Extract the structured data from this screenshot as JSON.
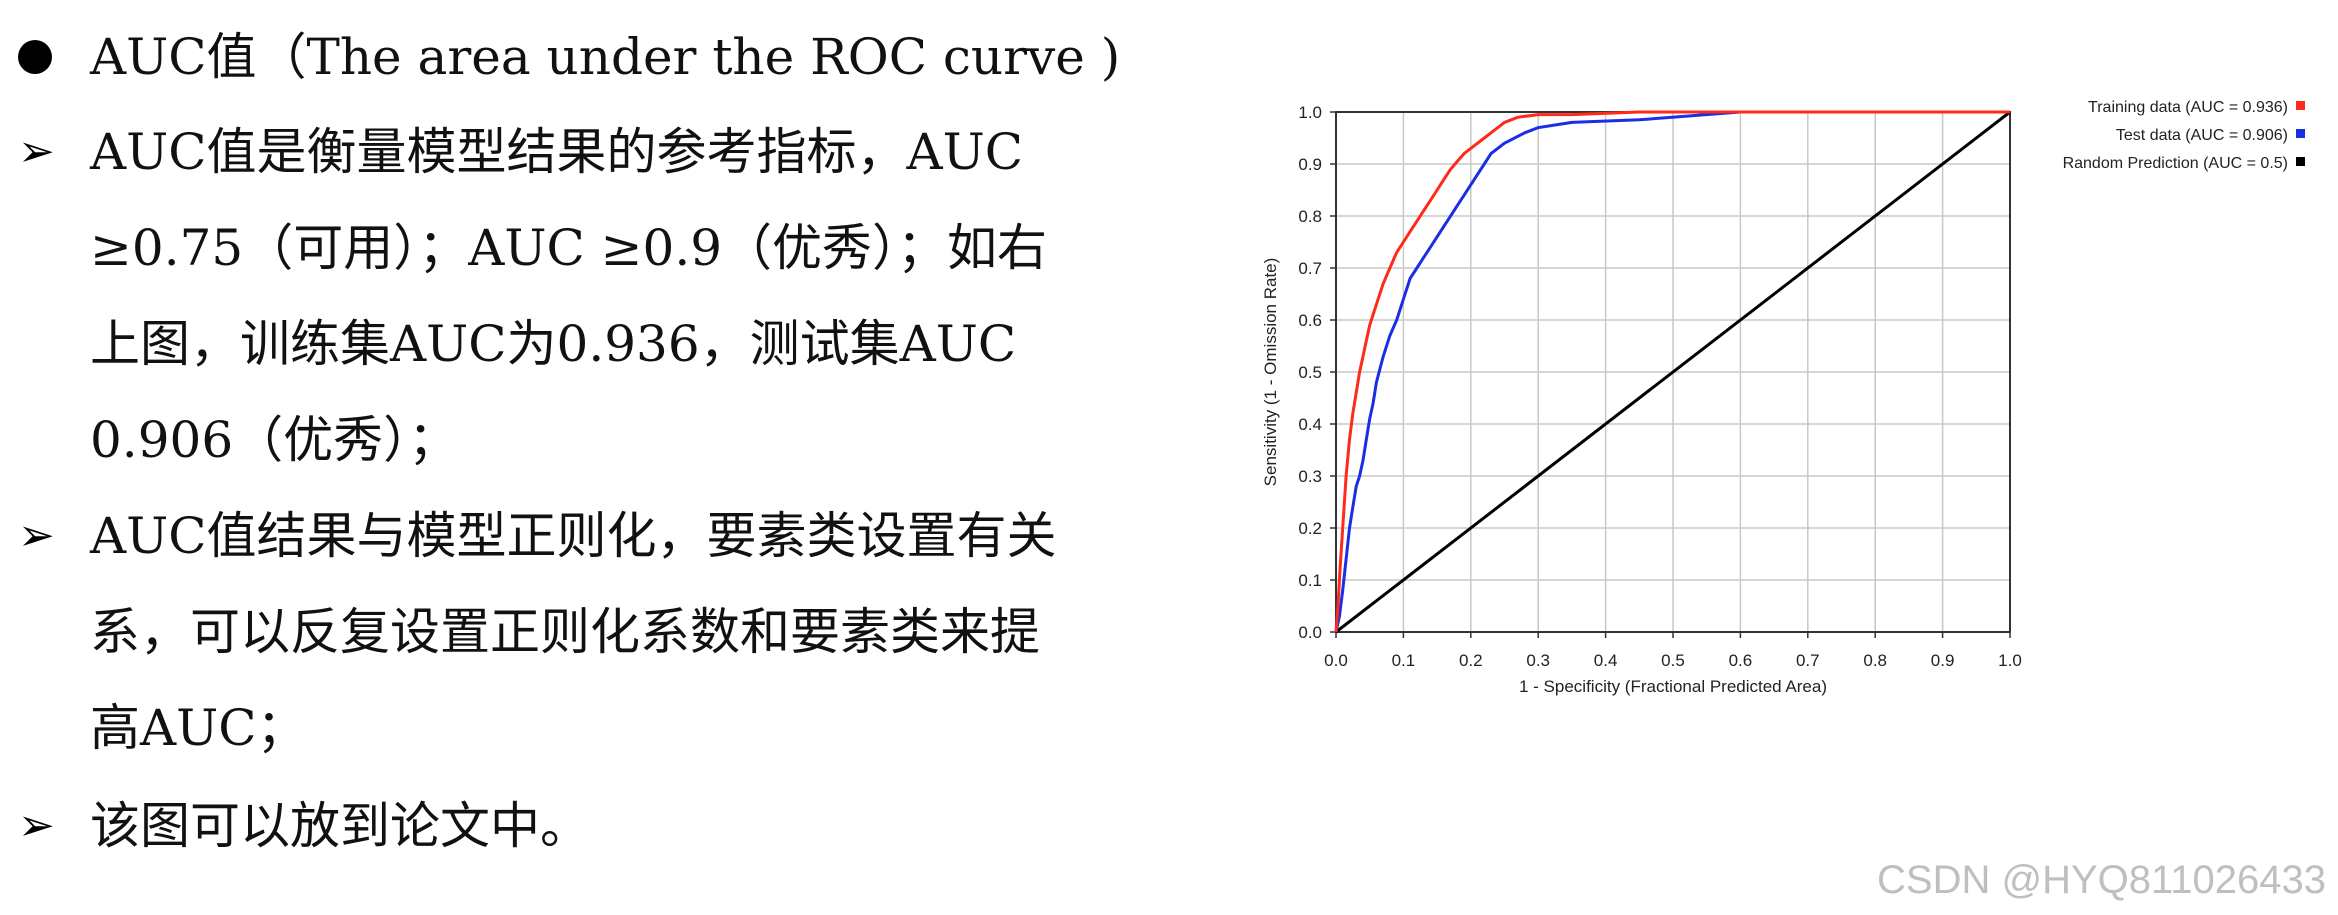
{
  "slide": {
    "bullet1": "AUC值（The area under the ROC curve )",
    "bullet2_lines": [
      "AUC值是衡量模型结果的参考指标，AUC",
      "≥0.75（可用）；AUC ≥0.9（优秀）；如右",
      "上图，训练集AUC为0.936，测试集AUC",
      "0.906（优秀）；"
    ],
    "bullet3_lines": [
      "AUC值结果与模型正则化，要素类设置有关",
      "系，可以反复设置正则化系数和要素类来提",
      "高AUC；"
    ],
    "bullet4": "该图可以放到论文中。",
    "arrow_glyph": "➢"
  },
  "chart_data": {
    "type": "line",
    "xlabel": "1 - Specificity  (Fractional Predicted Area)",
    "ylabel": "Sensitivity  (1 - Omission Rate)",
    "xlim": [
      0,
      1
    ],
    "ylim": [
      0,
      1
    ],
    "x_ticks": [
      "0.0",
      "0.1",
      "0.2",
      "0.3",
      "0.4",
      "0.5",
      "0.6",
      "0.7",
      "0.8",
      "0.9",
      "1.0"
    ],
    "y_ticks": [
      "0.0",
      "0.1",
      "0.2",
      "0.3",
      "0.4",
      "0.5",
      "0.6",
      "0.7",
      "0.8",
      "0.9",
      "1.0"
    ],
    "grid": true,
    "legend_position": "top-right, outside plot",
    "series": [
      {
        "name": "Training data (AUC = 0.936)",
        "color": "#ff2a1a",
        "x": [
          0.0,
          0.003,
          0.006,
          0.01,
          0.015,
          0.02,
          0.025,
          0.03,
          0.035,
          0.04,
          0.045,
          0.05,
          0.06,
          0.07,
          0.08,
          0.09,
          0.1,
          0.11,
          0.12,
          0.13,
          0.14,
          0.15,
          0.16,
          0.17,
          0.18,
          0.19,
          0.2,
          0.21,
          0.22,
          0.23,
          0.24,
          0.25,
          0.27,
          0.3,
          0.35,
          0.45,
          0.6,
          0.8,
          1.0
        ],
        "y": [
          0.0,
          0.05,
          0.12,
          0.2,
          0.3,
          0.37,
          0.42,
          0.46,
          0.5,
          0.53,
          0.56,
          0.59,
          0.63,
          0.67,
          0.7,
          0.73,
          0.75,
          0.77,
          0.79,
          0.81,
          0.83,
          0.85,
          0.87,
          0.89,
          0.905,
          0.92,
          0.93,
          0.94,
          0.95,
          0.96,
          0.97,
          0.98,
          0.99,
          0.995,
          0.995,
          1.0,
          1.0,
          1.0,
          1.0
        ]
      },
      {
        "name": "Test data (AUC = 0.906)",
        "color": "#1a2ee6",
        "x": [
          0.0,
          0.005,
          0.01,
          0.015,
          0.02,
          0.025,
          0.03,
          0.035,
          0.04,
          0.045,
          0.05,
          0.055,
          0.06,
          0.07,
          0.08,
          0.09,
          0.1,
          0.11,
          0.12,
          0.13,
          0.14,
          0.15,
          0.16,
          0.17,
          0.18,
          0.19,
          0.2,
          0.21,
          0.22,
          0.23,
          0.25,
          0.28,
          0.3,
          0.35,
          0.45,
          0.6,
          0.8,
          1.0
        ],
        "y": [
          0.0,
          0.03,
          0.08,
          0.14,
          0.2,
          0.24,
          0.28,
          0.3,
          0.33,
          0.37,
          0.41,
          0.44,
          0.48,
          0.53,
          0.57,
          0.6,
          0.64,
          0.68,
          0.7,
          0.72,
          0.74,
          0.76,
          0.78,
          0.8,
          0.82,
          0.84,
          0.86,
          0.88,
          0.9,
          0.92,
          0.94,
          0.96,
          0.97,
          0.98,
          0.985,
          1.0,
          1.0,
          1.0
        ]
      },
      {
        "name": "Random Prediction (AUC = 0.5)",
        "color": "#000000",
        "x": [
          0.0,
          1.0
        ],
        "y": [
          0.0,
          1.0
        ]
      }
    ]
  },
  "watermark": "CSDN @HYQ811026433"
}
